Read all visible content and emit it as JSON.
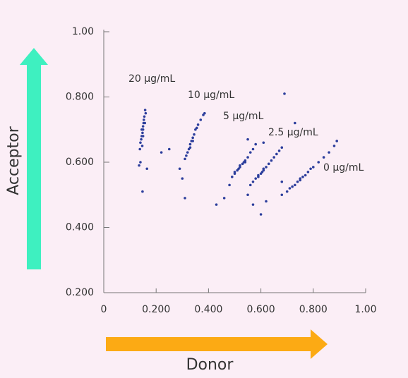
{
  "chart_data": {
    "type": "scatter",
    "x_label": "Donor",
    "y_label": "Acceptor",
    "xlim": [
      0,
      1
    ],
    "ylim": [
      0.2,
      1
    ],
    "xticks": [
      0,
      {
        "value": 0.2,
        "label": "0.200"
      },
      {
        "value": 0.4,
        "label": "0.400"
      },
      {
        "value": 0.6,
        "label": "0.600"
      },
      {
        "value": 0.8,
        "label": "0.800"
      },
      {
        "value": 1,
        "label": "1.00"
      }
    ],
    "yticks": [
      {
        "value": 0.2,
        "label": "0.200"
      },
      {
        "value": 0.4,
        "label": "0.400"
      },
      {
        "value": 0.6,
        "label": "0.600"
      },
      {
        "value": 0.8,
        "label": "0.800"
      },
      {
        "value": 1,
        "label": "1.00"
      }
    ],
    "series": [
      {
        "name": "20 µg/mL",
        "color": "#2c3e9c",
        "x": [
          0.14,
          0.145,
          0.15,
          0.152,
          0.148,
          0.155,
          0.143,
          0.158,
          0.15,
          0.147,
          0.153,
          0.16,
          0.138,
          0.145,
          0.157,
          0.15,
          0.135,
          0.165,
          0.14,
          0.148
        ],
        "values": [
          0.66,
          0.68,
          0.7,
          0.72,
          0.69,
          0.74,
          0.67,
          0.76,
          0.71,
          0.65,
          0.73,
          0.75,
          0.64,
          0.7,
          0.72,
          0.68,
          0.59,
          0.58,
          0.6,
          0.51
        ]
      },
      {
        "name": "10 µg/mL",
        "color": "#2c3e9c",
        "x": [
          0.31,
          0.32,
          0.325,
          0.33,
          0.335,
          0.34,
          0.345,
          0.35,
          0.355,
          0.36,
          0.37,
          0.38,
          0.385,
          0.315,
          0.33,
          0.34,
          0.29,
          0.3,
          0.31,
          0.22,
          0.25
        ],
        "values": [
          0.61,
          0.63,
          0.64,
          0.655,
          0.665,
          0.675,
          0.685,
          0.7,
          0.705,
          0.715,
          0.73,
          0.745,
          0.75,
          0.62,
          0.645,
          0.665,
          0.58,
          0.55,
          0.49,
          0.63,
          0.64
        ]
      },
      {
        "name": "5 µg/mL",
        "color": "#2c3e9c",
        "x": [
          0.49,
          0.5,
          0.51,
          0.515,
          0.52,
          0.53,
          0.535,
          0.54,
          0.55,
          0.56,
          0.57,
          0.58,
          0.5,
          0.52,
          0.54,
          0.48,
          0.43,
          0.46,
          0.55,
          0.61
        ],
        "values": [
          0.555,
          0.565,
          0.575,
          0.58,
          0.585,
          0.595,
          0.6,
          0.605,
          0.615,
          0.63,
          0.64,
          0.655,
          0.57,
          0.59,
          0.6,
          0.53,
          0.47,
          0.49,
          0.67,
          0.66
        ]
      },
      {
        "name": "2.5 µg/mL",
        "color": "#2c3e9c",
        "x": [
          0.56,
          0.57,
          0.58,
          0.59,
          0.6,
          0.605,
          0.61,
          0.62,
          0.63,
          0.64,
          0.65,
          0.66,
          0.67,
          0.68,
          0.59,
          0.61,
          0.55,
          0.6,
          0.62,
          0.57
        ],
        "values": [
          0.53,
          0.54,
          0.55,
          0.56,
          0.565,
          0.57,
          0.575,
          0.585,
          0.595,
          0.605,
          0.615,
          0.625,
          0.635,
          0.645,
          0.555,
          0.58,
          0.5,
          0.44,
          0.48,
          0.47
        ]
      },
      {
        "name": "0 µg/mL",
        "color": "#2c3e9c",
        "x": [
          0.68,
          0.7,
          0.72,
          0.73,
          0.74,
          0.75,
          0.76,
          0.77,
          0.78,
          0.79,
          0.8,
          0.82,
          0.84,
          0.86,
          0.88,
          0.89,
          0.71,
          0.75,
          0.69,
          0.73,
          0.68
        ],
        "values": [
          0.5,
          0.51,
          0.525,
          0.53,
          0.54,
          0.545,
          0.555,
          0.56,
          0.57,
          0.58,
          0.585,
          0.6,
          0.615,
          0.63,
          0.65,
          0.665,
          0.52,
          0.55,
          0.81,
          0.72,
          0.54
        ]
      }
    ]
  }
}
